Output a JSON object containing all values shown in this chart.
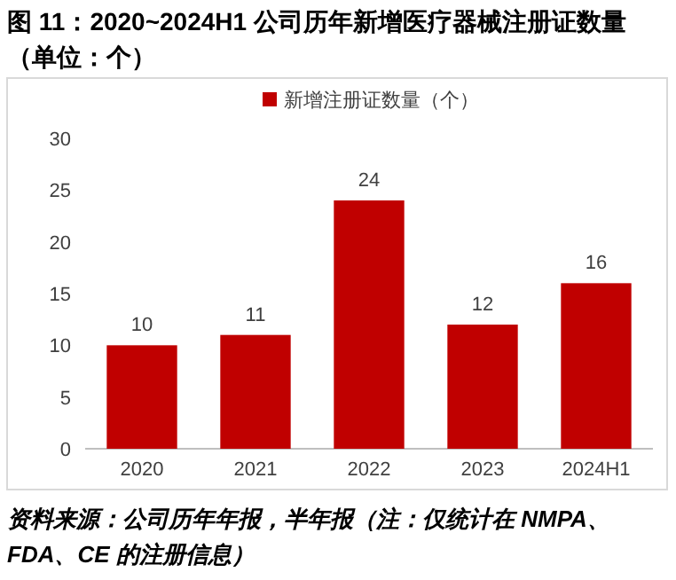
{
  "chart_data": {
    "type": "bar",
    "title": "图 11：2020~2024H1 公司历年新增医疗器械注册证数量（单位：个）",
    "categories": [
      "2020",
      "2021",
      "2022",
      "2023",
      "2024H1"
    ],
    "series": [
      {
        "name": "新增注册证数量（个）",
        "color": "#c00000",
        "values": [
          10,
          11,
          24,
          12,
          16
        ]
      }
    ],
    "ylim": [
      0,
      30
    ],
    "yticks": [
      0,
      5,
      10,
      15,
      20,
      25,
      30
    ],
    "data_labels": true,
    "legend": "top",
    "grid": false,
    "annotations": [
      "资料来源：公司历年年报，半年报（注：仅统计在 NMPA、FDA、CE 的注册信息）"
    ]
  }
}
